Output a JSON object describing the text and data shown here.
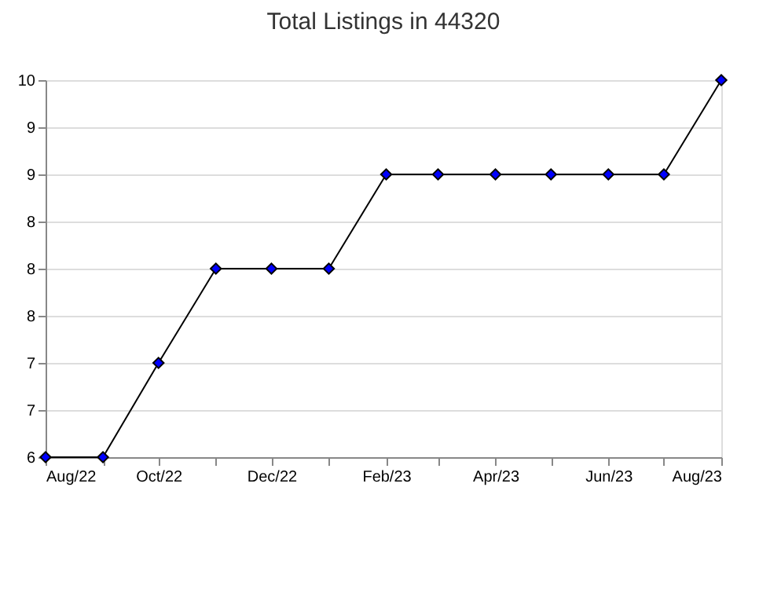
{
  "chart_data": {
    "type": "line",
    "title": "Total Listings in 44320",
    "x": [
      "2022-08",
      "2022-09",
      "2022-10",
      "2022-11",
      "2022-12",
      "2023-01",
      "2023-02",
      "2023-03",
      "2023-04",
      "2023-05",
      "2023-06",
      "2023-07",
      "2023-08"
    ],
    "series": [
      {
        "color": "#0000ff",
        "values": [
          6,
          6,
          7,
          8,
          8,
          8,
          9,
          9,
          9,
          9,
          9,
          9,
          10
        ]
      }
    ],
    "xlim": [
      "2022-08",
      "2023-08"
    ],
    "xticks": [
      {
        "value": "2022-08",
        "label": "Aug/22"
      },
      {
        "value": "2022-09",
        "label": null
      },
      {
        "value": "2022-10",
        "label": "Oct/22"
      },
      {
        "value": "2022-11",
        "label": null
      },
      {
        "value": "2022-12",
        "label": "Dec/22"
      },
      {
        "value": "2023-01",
        "label": null
      },
      {
        "value": "2023-02",
        "label": "Feb/23"
      },
      {
        "value": "2023-03",
        "label": null
      },
      {
        "value": "2023-04",
        "label": "Apr/23"
      },
      {
        "value": "2023-05",
        "label": null
      },
      {
        "value": "2023-06",
        "label": "Jun/23"
      },
      {
        "value": "2023-07",
        "label": null
      },
      {
        "value": "2023-08",
        "label": "Aug/23"
      }
    ],
    "ylim": [
      6,
      10
    ],
    "yticks": [
      6,
      {
        "value": 6.5,
        "label": "7"
      },
      7,
      {
        "value": 7.5,
        "label": "8"
      },
      8,
      {
        "value": 8.5,
        "label": "8"
      },
      9,
      {
        "value": 9.5,
        "label": "9"
      },
      10
    ],
    "grid": "y",
    "marker": "diamond",
    "line_style": "solid"
  }
}
